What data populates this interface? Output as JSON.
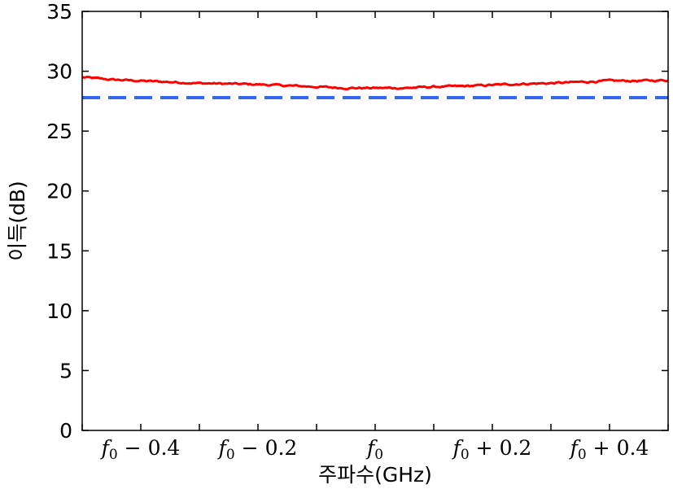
{
  "chart_data": {
    "type": "line",
    "xlabel": "주파수(GHz)",
    "ylabel": "이득(dB)",
    "xlim": [
      -0.5,
      0.5
    ],
    "ylim": [
      0,
      35
    ],
    "yticks": [
      0,
      5,
      10,
      15,
      20,
      25,
      30,
      35
    ],
    "xticks": [
      {
        "value": -0.4,
        "label": "f0 − 0.4"
      },
      {
        "value": -0.2,
        "label": "f0 − 0.2"
      },
      {
        "value": 0.0,
        "label": "f0"
      },
      {
        "value": 0.2,
        "label": "f0 + 0.2"
      },
      {
        "value": 0.4,
        "label": "f0 + 0.4"
      }
    ],
    "grid": false,
    "series": [
      {
        "style": "solid",
        "color": "#ff0000",
        "x": [
          -0.5,
          -0.45,
          -0.4,
          -0.35,
          -0.3,
          -0.25,
          -0.2,
          -0.15,
          -0.1,
          -0.05,
          0.0,
          0.05,
          0.1,
          0.15,
          0.2,
          0.25,
          0.3,
          0.35,
          0.4,
          0.45,
          0.5
        ],
        "values": [
          29.5,
          29.3,
          29.2,
          29.1,
          29.0,
          28.95,
          28.9,
          28.8,
          28.7,
          28.6,
          28.6,
          28.6,
          28.7,
          28.75,
          28.85,
          28.95,
          29.0,
          29.1,
          29.2,
          29.2,
          29.25
        ]
      },
      {
        "style": "dashed",
        "color": "#3366ee",
        "x": [
          -0.5,
          0.5
        ],
        "values": [
          27.8,
          27.8
        ]
      }
    ]
  }
}
